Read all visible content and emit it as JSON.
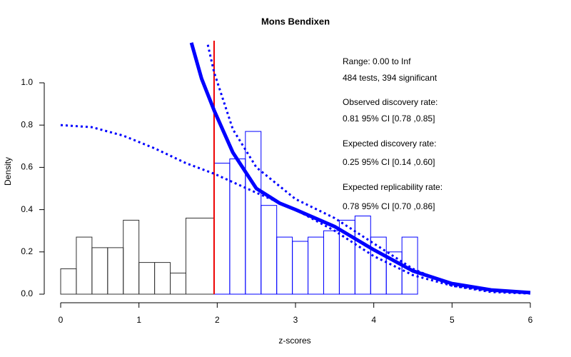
{
  "chart_data": {
    "type": "histogram",
    "title": "Mons Bendixen",
    "x_label": "z-scores",
    "y_label": "Density",
    "xlim": [
      0,
      6
    ],
    "ylim": [
      0,
      1.2
    ],
    "xticks": [
      0,
      1,
      2,
      3,
      4,
      5,
      6
    ],
    "yticks": [
      {
        "value": 0,
        "label": "0.0"
      },
      {
        "value": 0.2,
        "label": "0.2"
      },
      {
        "value": 0.4,
        "label": "0.4"
      },
      {
        "value": 0.6,
        "label": "0.6"
      },
      {
        "value": 0.8,
        "label": "0.8"
      },
      {
        "value": 1.0,
        "label": "1.0"
      }
    ],
    "histograms": [
      {
        "color": "#333333",
        "bins": [
          0,
          0.2,
          0.4,
          0.6,
          0.8,
          1.0,
          1.2,
          1.4,
          1.6,
          1.96
        ],
        "values": [
          0.12,
          0.27,
          0.22,
          0.22,
          0.35,
          0.15,
          0.15,
          0.1,
          0.36
        ]
      },
      {
        "color": "#0000ff",
        "bins": [
          1.96,
          2.16,
          2.36,
          2.56,
          2.76,
          2.96,
          3.16,
          3.36,
          3.56,
          3.76,
          3.96,
          4.16,
          4.36,
          4.56
        ],
        "values": [
          0.62,
          0.64,
          0.77,
          0.42,
          0.27,
          0.25,
          0.27,
          0.3,
          0.35,
          0.37,
          0.27,
          0.2,
          0.27
        ]
      }
    ],
    "lines": [
      {
        "color": "#0000ff",
        "style": "solid",
        "x": [
          1.67,
          1.8,
          1.96,
          2.2,
          2.5,
          2.8,
          3.0,
          3.5,
          4.0,
          4.5,
          5.0,
          5.5,
          6.0
        ],
        "values": [
          1.19,
          1.02,
          0.87,
          0.67,
          0.5,
          0.43,
          0.4,
          0.32,
          0.21,
          0.11,
          0.05,
          0.02,
          0.007
        ]
      },
      {
        "color": "#0000ff",
        "style": "dotted",
        "x": [
          1.88,
          1.96,
          2.2,
          2.5,
          3.0,
          3.5,
          4.0,
          4.5,
          5.0,
          5.5,
          6.0
        ],
        "values": [
          1.18,
          1.05,
          0.78,
          0.6,
          0.45,
          0.36,
          0.24,
          0.12,
          0.04,
          0.01,
          0.003
        ]
      },
      {
        "color": "#0000ff",
        "style": "dotted",
        "x": [
          0,
          0.4,
          0.8,
          1.2,
          1.6,
          1.96,
          2.5,
          3.0,
          3.5,
          4.0,
          4.5,
          5.0,
          5.5,
          6.0
        ],
        "values": [
          0.8,
          0.79,
          0.75,
          0.69,
          0.62,
          0.57,
          0.48,
          0.4,
          0.3,
          0.18,
          0.09,
          0.04,
          0.015,
          0.005
        ]
      }
    ],
    "threshold": {
      "value": 1.96,
      "color": "#ee0000"
    },
    "annotations": [
      "Range: 0.00 to Inf",
      "484 tests, 394 significant",
      "Observed discovery rate:",
      "0.81  95% CI [0.78 ,0.85]",
      "Expected discovery rate:",
      "0.25  95% CI [0.14 ,0.60]",
      "Expected replicability rate:",
      "0.78  95% CI [0.70 ,0.86]"
    ]
  }
}
